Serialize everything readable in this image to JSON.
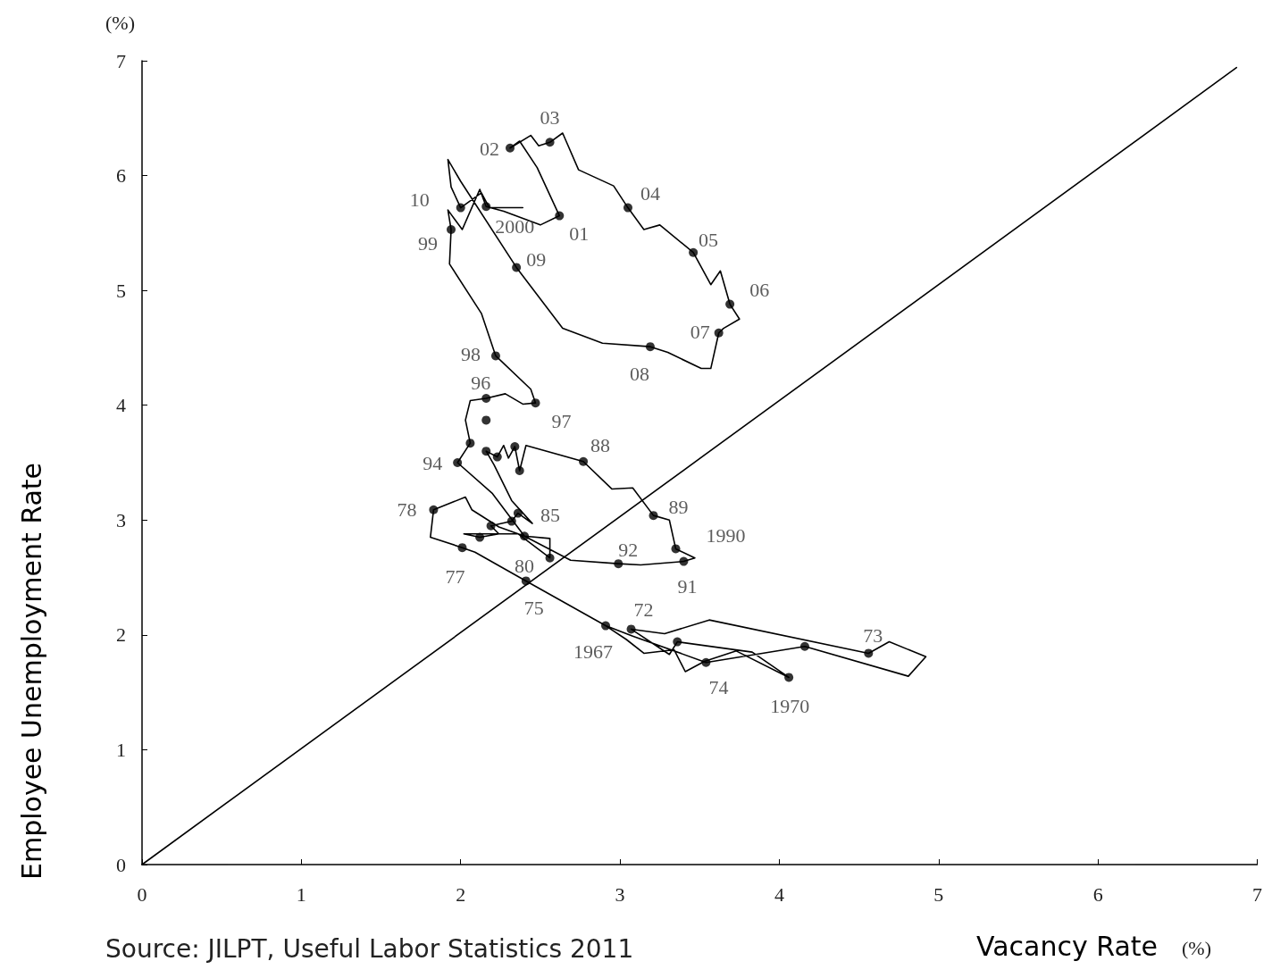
{
  "chart_data": {
    "type": "line",
    "xlabel": "Vacancy Rate",
    "ylabel": "Employee Unemployment Rate",
    "xlim": [
      0,
      7
    ],
    "ylim": [
      0,
      7
    ],
    "xticks": [
      0,
      1,
      2,
      3,
      4,
      5,
      6,
      7
    ],
    "yticks": [
      0,
      1,
      2,
      3,
      4,
      5,
      6,
      7
    ],
    "grid": false,
    "series": [
      {
        "color": "#000000",
        "marker": "none",
        "x": [
          2.91,
          3.04,
          3.15,
          3.34,
          3.41,
          3.53,
          3.73,
          4.06,
          3.83,
          3.36,
          3.31,
          3.07,
          3.28,
          3.56,
          4.56,
          4.69,
          4.92,
          4.81,
          4.16,
          3.54,
          3.08,
          2.91,
          2.41,
          2.09,
          2.01,
          1.81,
          1.83,
          2.03,
          2.07,
          2.24,
          2.4,
          2.56,
          2.56,
          2.36,
          2.02,
          2.12,
          2.24,
          2.19,
          2.32,
          2.36,
          2.45,
          2.32,
          2.21,
          2.16,
          2.23,
          2.27,
          2.3,
          2.34,
          2.37,
          2.41,
          2.77,
          2.95,
          3.08,
          3.21,
          3.31,
          3.35,
          3.47,
          3.4,
          3.13,
          2.99,
          2.69,
          2.4,
          2.2,
          1.98,
          2.06,
          2.03,
          2.06,
          2.16,
          2.28,
          2.39,
          2.47,
          2.44,
          2.22,
          2.13,
          1.93,
          1.94,
          1.92,
          2.01,
          2.12,
          2.16,
          2.27,
          2.5,
          2.62,
          2.48,
          2.37,
          2.31,
          2.44,
          2.49,
          2.56,
          2.64,
          2.74,
          2.96,
          3.05,
          3.15,
          3.25,
          3.46,
          3.57,
          3.63,
          3.69,
          3.75,
          3.65,
          3.62,
          3.57,
          3.51,
          3.3,
          3.19,
          2.89,
          2.64,
          2.35,
          2.0,
          1.92,
          1.94,
          2.0,
          2.13,
          2.18,
          2.39
        ],
        "values": [
          2.08,
          1.96,
          1.84,
          1.87,
          1.68,
          1.77,
          1.86,
          1.63,
          1.85,
          1.94,
          1.83,
          2.05,
          2.01,
          2.13,
          1.84,
          1.94,
          1.81,
          1.64,
          1.9,
          1.76,
          1.99,
          2.08,
          2.47,
          2.72,
          2.76,
          2.85,
          3.09,
          3.2,
          3.09,
          2.94,
          2.86,
          2.84,
          2.67,
          2.88,
          2.88,
          2.85,
          2.88,
          2.95,
          2.99,
          3.06,
          2.97,
          3.17,
          3.48,
          3.6,
          3.55,
          3.65,
          3.54,
          3.64,
          3.43,
          3.65,
          3.51,
          3.27,
          3.28,
          3.04,
          3.0,
          2.75,
          2.67,
          2.64,
          2.61,
          2.62,
          2.65,
          2.86,
          3.23,
          3.5,
          3.67,
          3.87,
          4.04,
          4.06,
          4.1,
          4.01,
          4.02,
          4.14,
          4.43,
          4.8,
          5.23,
          5.53,
          5.7,
          5.53,
          5.88,
          5.73,
          5.69,
          5.57,
          5.65,
          6.07,
          6.3,
          6.24,
          6.35,
          6.26,
          6.29,
          6.37,
          6.05,
          5.91,
          5.72,
          5.53,
          5.57,
          5.33,
          5.05,
          5.17,
          4.88,
          4.75,
          4.67,
          4.63,
          4.32,
          4.32,
          4.46,
          4.51,
          4.54,
          4.67,
          5.2,
          5.95,
          6.14,
          5.9,
          5.72,
          5.85,
          5.72,
          5.72
        ]
      },
      {
        "type": "scatter",
        "marker": "circle",
        "color": "#000000",
        "x": [
          2.91,
          3.07,
          3.36,
          3.54,
          4.06,
          4.16,
          4.56,
          2.41,
          2.01,
          1.83,
          2.12,
          2.19,
          2.32,
          2.36,
          2.4,
          2.56,
          1.98,
          2.06,
          2.16,
          2.16,
          2.47,
          2.16,
          2.23,
          2.34,
          2.37,
          2.77,
          3.21,
          3.35,
          3.4,
          2.99,
          2.22,
          1.94,
          2.16,
          2.62,
          2.31,
          2.56,
          3.05,
          3.46,
          3.69,
          3.62,
          3.19,
          2.35,
          2.0
        ],
        "values": [
          2.08,
          2.05,
          1.94,
          1.76,
          1.63,
          1.9,
          1.84,
          2.47,
          2.76,
          3.09,
          2.85,
          2.95,
          2.99,
          3.06,
          2.86,
          2.67,
          3.5,
          3.67,
          3.87,
          4.06,
          4.02,
          3.6,
          3.55,
          3.64,
          3.43,
          3.51,
          3.04,
          2.75,
          2.64,
          2.62,
          4.43,
          5.53,
          5.73,
          5.65,
          6.24,
          6.29,
          5.72,
          5.33,
          4.88,
          4.63,
          4.51,
          5.2,
          5.72
        ]
      },
      {
        "type": "line",
        "marker": "none",
        "color": "#000000",
        "x": [
          0,
          6.87
        ],
        "values": [
          0,
          6.94
        ]
      }
    ],
    "annotations": [
      "(%)",
      "(%)",
      "Source: JILPT, Useful Labor Statistics 2011",
      {
        "text": "1967",
        "x": 2.91,
        "y": 2.08
      },
      {
        "text": "72",
        "x": 3.07,
        "y": 2.05
      },
      {
        "text": "74",
        "x": 3.54,
        "y": 1.76
      },
      {
        "text": "1970",
        "x": 4.06,
        "y": 1.63
      },
      {
        "text": "73",
        "x": 4.56,
        "y": 1.84
      },
      {
        "text": "75",
        "x": 2.41,
        "y": 2.47
      },
      {
        "text": "77",
        "x": 2.01,
        "y": 2.76
      },
      {
        "text": "78",
        "x": 1.83,
        "y": 3.09
      },
      {
        "text": "85",
        "x": 2.36,
        "y": 3.06
      },
      {
        "text": "80",
        "x": 2.4,
        "y": 2.86
      },
      {
        "text": "94",
        "x": 1.98,
        "y": 3.5
      },
      {
        "text": "96",
        "x": 2.16,
        "y": 4.06
      },
      {
        "text": "97",
        "x": 2.47,
        "y": 4.02
      },
      {
        "text": "88",
        "x": 2.77,
        "y": 3.51
      },
      {
        "text": "89",
        "x": 3.21,
        "y": 3.04
      },
      {
        "text": "1990",
        "x": 3.35,
        "y": 2.75
      },
      {
        "text": "91",
        "x": 3.4,
        "y": 2.64
      },
      {
        "text": "92",
        "x": 2.99,
        "y": 2.62
      },
      {
        "text": "98",
        "x": 2.22,
        "y": 4.43
      },
      {
        "text": "99",
        "x": 1.94,
        "y": 5.53
      },
      {
        "text": "2000",
        "x": 2.16,
        "y": 5.73
      },
      {
        "text": "01",
        "x": 2.62,
        "y": 5.65
      },
      {
        "text": "02",
        "x": 2.31,
        "y": 6.24
      },
      {
        "text": "03",
        "x": 2.56,
        "y": 6.29
      },
      {
        "text": "04",
        "x": 3.05,
        "y": 5.72
      },
      {
        "text": "05",
        "x": 3.46,
        "y": 5.33
      },
      {
        "text": "06",
        "x": 3.69,
        "y": 4.88
      },
      {
        "text": "07",
        "x": 3.62,
        "y": 4.63
      },
      {
        "text": "08",
        "x": 3.19,
        "y": 4.51
      },
      {
        "text": "09",
        "x": 2.35,
        "y": 5.2
      },
      {
        "text": "10",
        "x": 2.0,
        "y": 5.72
      }
    ]
  }
}
